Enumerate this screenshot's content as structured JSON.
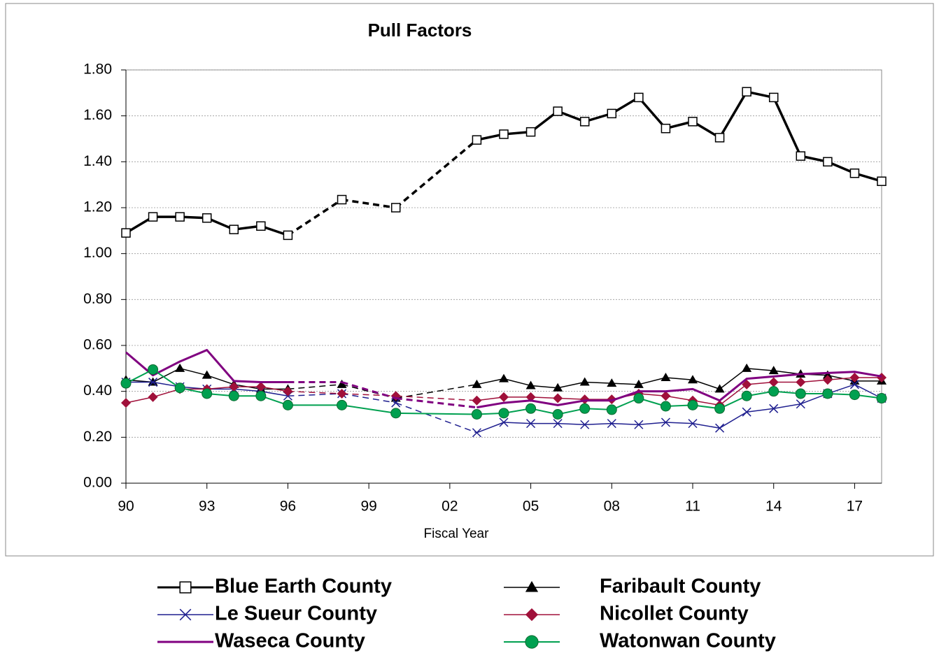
{
  "chart_data": {
    "type": "line",
    "title": "Pull Factors",
    "x_label": "Fiscal Year",
    "x": [
      1990,
      1991,
      1992,
      1993,
      1994,
      1995,
      1996,
      1998,
      2000,
      2003,
      2004,
      2005,
      2006,
      2007,
      2008,
      2009,
      2010,
      2011,
      2012,
      2013,
      2014,
      2015,
      2016,
      2017,
      2018
    ],
    "xlim": [
      1990,
      2018
    ],
    "xticks": [
      {
        "value": 1990,
        "label": "90"
      },
      {
        "value": 1993,
        "label": "93"
      },
      {
        "value": 1996,
        "label": "96"
      },
      {
        "value": 1999,
        "label": "99"
      },
      {
        "value": 2002,
        "label": "02"
      },
      {
        "value": 2005,
        "label": "05"
      },
      {
        "value": 2008,
        "label": "08"
      },
      {
        "value": 2011,
        "label": "11"
      },
      {
        "value": 2014,
        "label": "14"
      },
      {
        "value": 2017,
        "label": "17"
      }
    ],
    "ylim": [
      0,
      1.8
    ],
    "yticks": [
      {
        "value": 0,
        "label": "0.00"
      },
      {
        "value": 0.2,
        "label": "0.20"
      },
      {
        "value": 0.4,
        "label": "0.40"
      },
      {
        "value": 0.6,
        "label": "0.60"
      },
      {
        "value": 0.8,
        "label": "0.80"
      },
      {
        "value": 1,
        "label": "1.00"
      },
      {
        "value": 1.2,
        "label": "1.20"
      },
      {
        "value": 1.4,
        "label": "1.40"
      },
      {
        "value": 1.6,
        "label": "1.60"
      },
      {
        "value": 1.8,
        "label": "1.80"
      }
    ],
    "grid": true,
    "series": [
      {
        "name": "Blue Earth County",
        "color": "#000000",
        "marker": "square",
        "width": 3.5,
        "dashed_gaps": true,
        "values": [
          1.09,
          1.16,
          1.16,
          1.155,
          1.105,
          1.12,
          1.08,
          1.235,
          1.2,
          1.495,
          1.52,
          1.53,
          1.62,
          1.575,
          1.61,
          1.68,
          1.545,
          1.575,
          1.505,
          1.705,
          1.68,
          1.425,
          1.4,
          1.35,
          1.315
        ]
      },
      {
        "name": "Faribault County",
        "color": "#000000",
        "marker": "triangle",
        "width": 1.5,
        "dashed_gaps": true,
        "values": [
          0.45,
          0.44,
          0.5,
          0.47,
          0.43,
          0.41,
          0.41,
          0.43,
          0.37,
          0.43,
          0.455,
          0.425,
          0.415,
          0.44,
          0.435,
          0.43,
          0.46,
          0.45,
          0.41,
          0.5,
          0.49,
          0.475,
          0.47,
          0.445,
          0.445
        ]
      },
      {
        "name": "Le Sueur County",
        "color": "#1f1f8f",
        "marker": "x",
        "width": 1.5,
        "dashed_gaps": true,
        "values": [
          0.44,
          0.44,
          0.42,
          0.41,
          0.41,
          0.4,
          0.38,
          0.39,
          0.35,
          0.22,
          0.265,
          0.26,
          0.26,
          0.255,
          0.26,
          0.255,
          0.265,
          0.26,
          0.24,
          0.31,
          0.325,
          0.345,
          0.39,
          0.43,
          0.37
        ]
      },
      {
        "name": "Nicollet County",
        "color": "#a0103a",
        "marker": "diamond",
        "width": 1.5,
        "dashed_gaps": true,
        "values": [
          0.35,
          0.375,
          0.41,
          0.41,
          0.42,
          0.42,
          0.4,
          0.39,
          0.38,
          0.36,
          0.375,
          0.375,
          0.37,
          0.365,
          0.365,
          0.39,
          0.38,
          0.36,
          0.34,
          0.43,
          0.44,
          0.44,
          0.45,
          0.46,
          0.46
        ]
      },
      {
        "name": "Waseca County",
        "color": "#800080",
        "marker": "none",
        "width": 3,
        "dashed_gaps": true,
        "values": [
          0.57,
          0.47,
          0.53,
          0.58,
          0.445,
          0.44,
          0.44,
          0.44,
          0.37,
          0.33,
          0.35,
          0.36,
          0.34,
          0.36,
          0.36,
          0.4,
          0.4,
          0.41,
          0.36,
          0.455,
          0.465,
          0.475,
          0.48,
          0.485,
          0.465
        ]
      },
      {
        "name": "Watonwan County",
        "color": "#00a050",
        "marker": "circle",
        "width": 2,
        "dashed_gaps": false,
        "values": [
          0.435,
          0.495,
          0.415,
          0.39,
          0.38,
          0.38,
          0.34,
          0.34,
          0.305,
          0.3,
          0.305,
          0.325,
          0.3,
          0.325,
          0.32,
          0.37,
          0.335,
          0.34,
          0.325,
          0.38,
          0.4,
          0.39,
          0.39,
          0.385,
          0.37
        ]
      }
    ]
  }
}
